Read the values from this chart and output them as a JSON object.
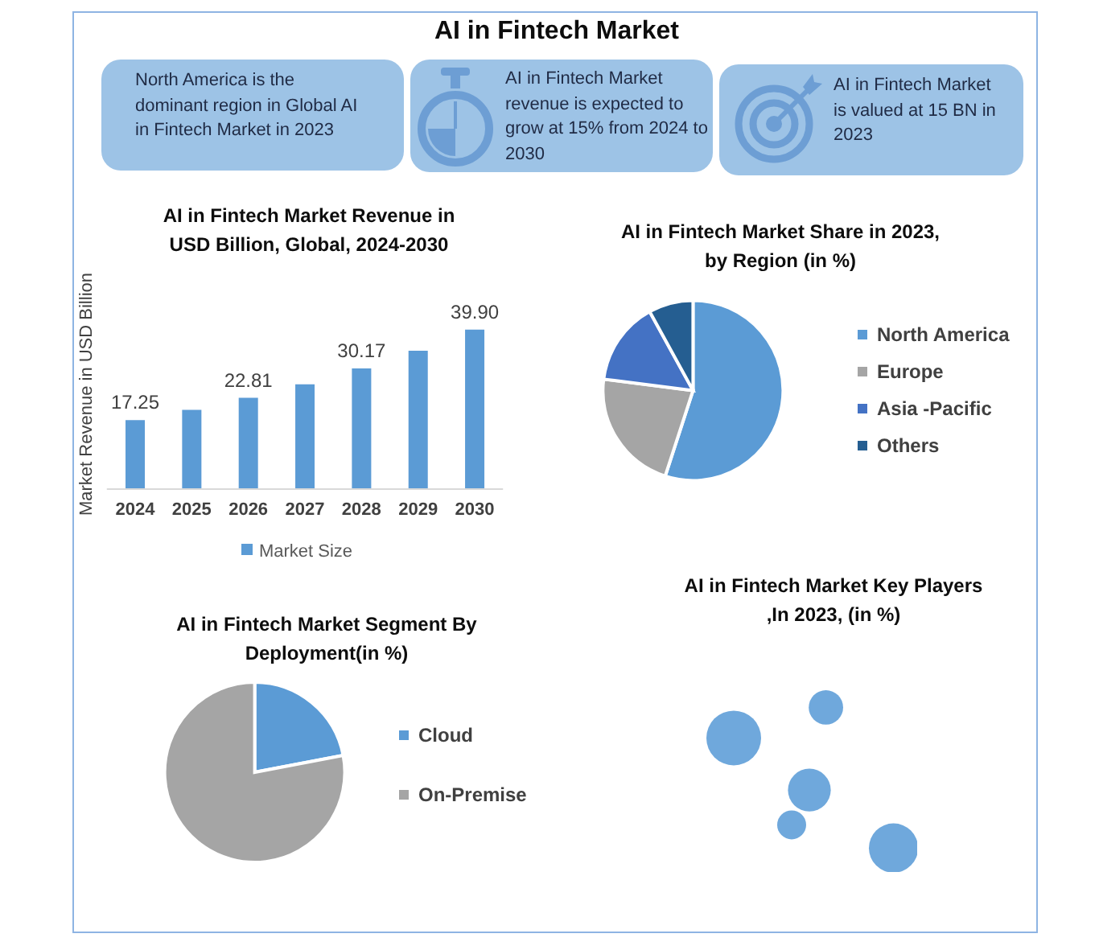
{
  "chart_data": [
    {
      "type": "other",
      "title": "AI in Fintech Market",
      "annotations": [
        "North America is the dominant region in Global AI in Fintech Market in 2023",
        "AI in Fintech Market revenue is expected to grow at 15% from 2024 to 2030",
        "AI in Fintech Market is valued at 15 BN in 2023"
      ]
    },
    {
      "type": "bar",
      "title": "AI in Fintech Market Revenue in USD Billion, Global, 2024-2030",
      "ylabel": "Market Revenue in USD Billion",
      "categories": [
        "2024",
        "2025",
        "2026",
        "2027",
        "2028",
        "2029",
        "2030"
      ],
      "series": [
        {
          "name": "Market Size",
          "color": "#5b9bd5",
          "values": [
            17.25,
            19.8,
            22.81,
            26.2,
            30.17,
            34.6,
            39.9
          ],
          "value_labels": [
            "17.25",
            null,
            "22.81",
            null,
            "30.17",
            null,
            "39.90"
          ]
        }
      ],
      "legend": "bottom",
      "tick_labels": "x"
    },
    {
      "type": "pie",
      "title": "AI in Fintech Market Share in 2023, by Region (in %)",
      "categories": [
        "North America",
        "Europe",
        "Asia -Pacific",
        "Others"
      ],
      "values": [
        55,
        22,
        15,
        8
      ],
      "colors": [
        "#5b9bd5",
        "#a5a5a5",
        "#4472c4",
        "#255e91"
      ],
      "legend": "right"
    },
    {
      "type": "pie",
      "title": "AI in Fintech Market Segment By Deployment(in %)",
      "categories": [
        "Cloud",
        "On-Premise"
      ],
      "values": [
        22,
        78
      ],
      "colors": [
        "#5b9bd5",
        "#a5a5a5"
      ],
      "legend": "right"
    },
    {
      "type": "other",
      "title": "AI in Fintech Market Key Players ,In 2023, (in %)"
    }
  ]
}
